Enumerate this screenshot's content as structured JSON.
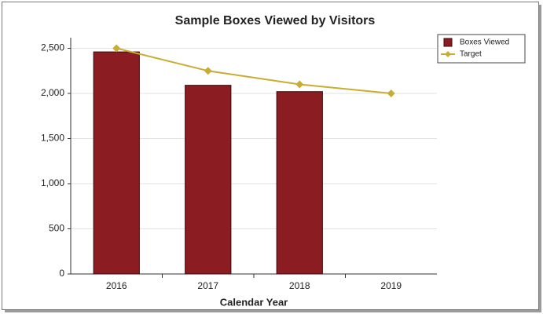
{
  "chart_data": {
    "type": "bar",
    "title": "Sample Boxes Viewed by Visitors",
    "x_label": "Calendar Year",
    "categories": [
      "2016",
      "2017",
      "2018",
      "2019"
    ],
    "series": [
      {
        "name": "Boxes Viewed",
        "color": "#8b1c21",
        "kind": "bar",
        "values": [
          2460,
          2090,
          2020,
          null
        ]
      },
      {
        "name": "Target",
        "color": "#c9ad33",
        "kind": "line",
        "values": [
          2500,
          2250,
          2100,
          2000
        ]
      }
    ],
    "ylim": [
      0,
      2600
    ],
    "yticks": [
      0,
      500,
      {
        "value": 1000,
        "label": "1,000"
      },
      {
        "value": 1500,
        "label": "1,500"
      },
      {
        "value": 2000,
        "label": "2,000"
      },
      {
        "value": 2500,
        "label": "2,500"
      }
    ],
    "grid": true,
    "legend": "top-right"
  }
}
